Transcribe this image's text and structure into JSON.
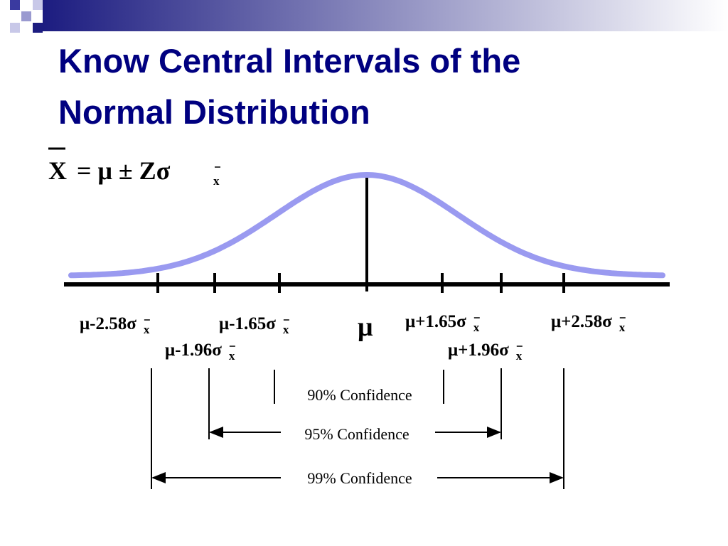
{
  "title": [
    "Know Central Intervals of the",
    "Normal Distribution"
  ],
  "formula": {
    "variable": "X",
    "expression": "= μ ± Zσ",
    "subscript": "x"
  },
  "center_label": "μ",
  "tick_labels": [
    {
      "text": "μ-2.58σ",
      "subscript": "x"
    },
    {
      "text": "μ-1.96σ",
      "subscript": "x"
    },
    {
      "text": "μ-1.65σ",
      "subscript": "x"
    },
    {
      "text": "μ+1.65σ",
      "subscript": "x"
    },
    {
      "text": "μ+1.96σ",
      "subscript": "x"
    },
    {
      "text": "μ+2.58σ",
      "subscript": "x"
    }
  ],
  "intervals": [
    "90% Confidence",
    "95% Confidence",
    "99% Confidence"
  ]
}
